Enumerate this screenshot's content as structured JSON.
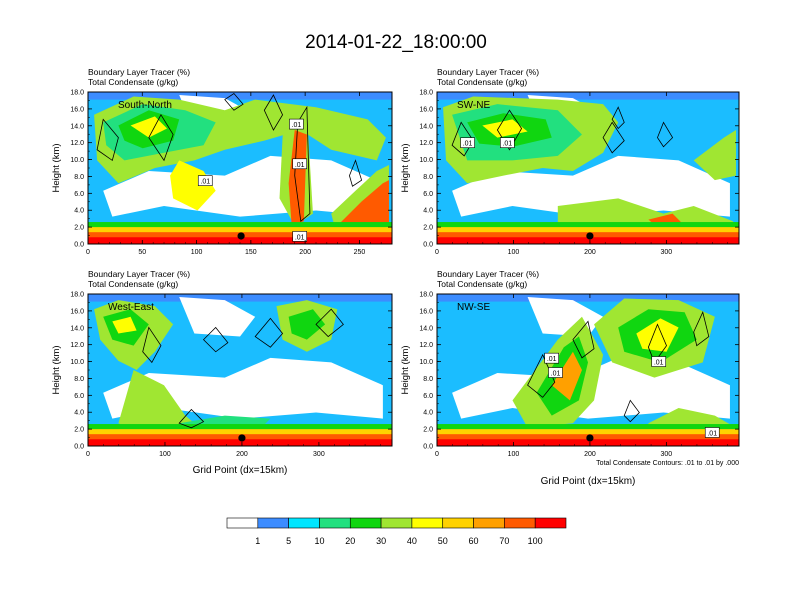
{
  "title": "2014-01-22_18:00:00",
  "chart_data": [
    {
      "type": "heatmap",
      "panel_label": "South-North",
      "title_lines": [
        "Boundary Layer Tracer    (%)",
        "Total Condensate   (g/kg)"
      ],
      "ylabel": "Height (km)",
      "xlabel": "",
      "xlim": [
        0,
        280
      ],
      "ylim": [
        0,
        18
      ],
      "xticks": [
        0,
        50,
        100,
        150,
        200,
        250
      ],
      "yticks": [
        "0.0",
        "2.0",
        "4.0",
        "6.0",
        "8.0",
        "10.0",
        "12.0",
        "14.0",
        "16.0",
        "18.0"
      ],
      "marker_x": 141,
      "contour_labels": [
        {
          "text": ".01",
          "x": 192,
          "y": 14.2
        },
        {
          "text": ".01",
          "x": 195,
          "y": 9.5
        },
        {
          "text": ".01",
          "x": 108,
          "y": 7.5
        },
        {
          "text": ".01",
          "x": 195,
          "y": 0.9
        }
      ]
    },
    {
      "type": "heatmap",
      "panel_label": "SW-NE",
      "title_lines": [
        "Boundary Layer Tracer    (%)",
        "Total Condensate   (g/kg)"
      ],
      "ylabel": "Height (km)",
      "xlabel": "",
      "xlim": [
        0,
        395
      ],
      "ylim": [
        0,
        18
      ],
      "xticks": [
        0,
        100,
        200,
        300
      ],
      "yticks": [
        "0.0",
        "2.0",
        "4.0",
        "6.0",
        "8.0",
        "10.0",
        "12.0",
        "14.0",
        "16.0",
        "18.0"
      ],
      "marker_x": 200,
      "contour_labels": [
        {
          "text": ".01",
          "x": 40,
          "y": 12.0
        },
        {
          "text": ".01",
          "x": 92,
          "y": 12.0
        }
      ]
    },
    {
      "type": "heatmap",
      "panel_label": "West-East",
      "title_lines": [
        "Boundary Layer Tracer    (%)",
        "Total Condensate   (g/kg)"
      ],
      "ylabel": "Height (km)",
      "xlabel": "Grid Point (dx=15km)",
      "xlim": [
        0,
        395
      ],
      "ylim": [
        0,
        18
      ],
      "xticks": [
        0,
        100,
        200,
        300
      ],
      "yticks": [
        "0.0",
        "2.0",
        "4.0",
        "6.0",
        "8.0",
        "10.0",
        "12.0",
        "14.0",
        "16.0",
        "18.0"
      ],
      "marker_x": 200,
      "contour_labels": []
    },
    {
      "type": "heatmap",
      "panel_label": "NW-SE",
      "title_lines": [
        "Boundary Layer Tracer    (%)",
        "Total Condensate   (g/kg)"
      ],
      "ylabel": "Height (km)",
      "xlabel": "Grid Point (dx=15km)",
      "xlim": [
        0,
        395
      ],
      "ylim": [
        0,
        18
      ],
      "xticks": [
        0,
        100,
        200,
        300
      ],
      "yticks": [
        "0.0",
        "2.0",
        "4.0",
        "6.0",
        "8.0",
        "10.0",
        "12.0",
        "14.0",
        "16.0",
        "18.0"
      ],
      "marker_x": 200,
      "footnote": "Total Condensate Contours: .01 to .01 by .000",
      "contour_labels": [
        {
          "text": ".01",
          "x": 150,
          "y": 10.4
        },
        {
          "text": ".01",
          "x": 155,
          "y": 8.7
        },
        {
          "text": ".01",
          "x": 290,
          "y": 10.0
        },
        {
          "text": ".01",
          "x": 360,
          "y": 1.6
        }
      ]
    }
  ],
  "colorbar": {
    "levels": [
      "1",
      "5",
      "10",
      "20",
      "30",
      "40",
      "50",
      "60",
      "70",
      "100"
    ],
    "colors": [
      "#ffffff",
      "#3c8cff",
      "#00e6ff",
      "#22e07f",
      "#10d610",
      "#a0e632",
      "#ffff00",
      "#ffd200",
      "#ffa000",
      "#ff5a00",
      "#ff0000"
    ]
  }
}
